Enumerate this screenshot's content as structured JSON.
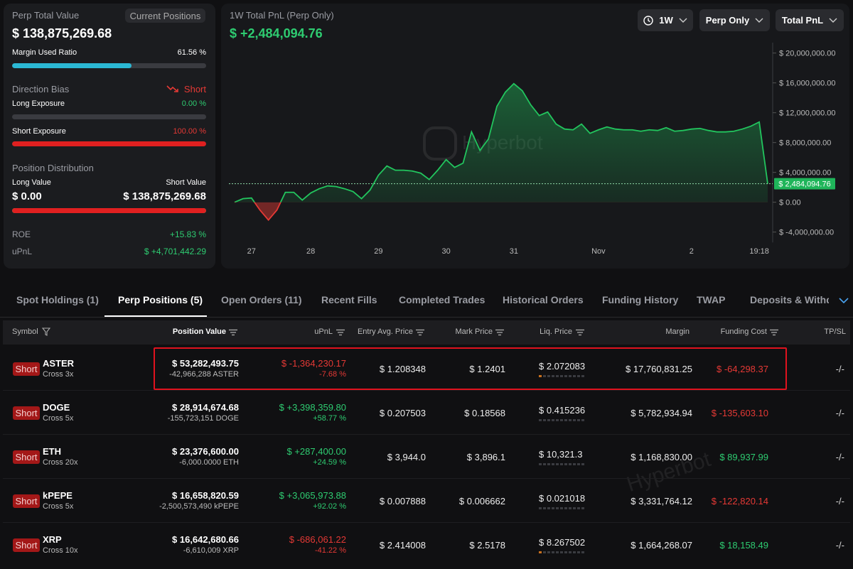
{
  "left_panel": {
    "title": "Perp Total Value",
    "button": "Current Positions",
    "total_value": "$ 138,875,269.68",
    "margin_label": "Margin Used Ratio",
    "margin_ratio": "61.56 %",
    "bias_label": "Direction Bias",
    "bias": "Short",
    "long_exposure_label": "Long Exposure",
    "long_exposure": "0.00 %",
    "short_exposure_label": "Short Exposure",
    "short_exposure": "100.00 %",
    "distribution_label": "Position Distribution",
    "long_value_label": "Long Value",
    "long_value": "$ 0.00",
    "short_value_label": "Short Value",
    "short_value": "$ 138,875,269.68",
    "roe_label": "ROE",
    "roe": "+15.83 %",
    "upnl_label": "uPnL",
    "upnl": "$ +4,701,442.29"
  },
  "chart_data": {
    "type": "area",
    "title": "1W Total PnL (Perp Only)",
    "headline": "$ +2,484,094.76",
    "controls": [
      "1W",
      "Perp Only",
      "Total PnL"
    ],
    "watermark": "Hyperbot",
    "color": "#22c55e",
    "negative_color": "#e53935",
    "grid": false,
    "categories": [
      null,
      null,
      "27",
      null,
      null,
      null,
      null,
      null,
      null,
      "28",
      null,
      null,
      null,
      null,
      null,
      null,
      null,
      "29",
      null,
      null,
      null,
      null,
      null,
      null,
      null,
      "30",
      null,
      null,
      null,
      null,
      null,
      null,
      null,
      "31",
      null,
      null,
      null,
      null,
      null,
      null,
      null,
      null,
      null,
      "Nov",
      null,
      null,
      null,
      null,
      null,
      null,
      null,
      null,
      null,
      null,
      "2",
      null,
      null,
      null,
      null,
      null,
      null,
      null,
      "19:18",
      null
    ],
    "values": [
      0,
      480000,
      570000,
      -1050000,
      -2380000,
      -1050000,
      1330000,
      1330000,
      290000,
      1240000,
      1810000,
      2190000,
      2100000,
      1810000,
      1430000,
      480000,
      1620000,
      3620000,
      4860000,
      4290000,
      4290000,
      4190000,
      3900000,
      3050000,
      4290000,
      5710000,
      4670000,
      5240000,
      9430000,
      6950000,
      8480000,
      12860000,
      14760000,
      15900000,
      14950000,
      13050000,
      11620000,
      12100000,
      10480000,
      9810000,
      9710000,
      10480000,
      9240000,
      9710000,
      10100000,
      9810000,
      9710000,
      9710000,
      9520000,
      9710000,
      9620000,
      10000000,
      9520000,
      9620000,
      9810000,
      9900000,
      9620000,
      9430000,
      9430000,
      9520000,
      9810000,
      10190000,
      10760000,
      2484094.76
    ],
    "last_value_label": "$ 2,484,094.76",
    "ylim": [
      -5400000,
      21400000
    ],
    "yticks": [
      {
        "value": 20000000,
        "label": "$ 20,000,000.00"
      },
      {
        "value": 16000000,
        "label": "$ 16,000,000.00"
      },
      {
        "value": 12000000,
        "label": "$ 12,000,000.00"
      },
      {
        "value": 8000000,
        "label": "$ 8,000,000.00"
      },
      {
        "value": 4000000,
        "label": "$ 4,000,000.00"
      },
      {
        "value": 0,
        "label": "$ 0.00"
      },
      {
        "value": -4000000,
        "label": "$ -4,000,000.00"
      }
    ]
  },
  "tabs": [
    "Spot Holdings (1)",
    "Perp Positions (5)",
    "Open Orders (11)",
    "Recent Fills",
    "Completed Trades",
    "Historical Orders",
    "Funding History",
    "TWAP",
    "Deposits & Withdra"
  ],
  "table": {
    "headers": [
      "Symbol",
      "Position Value",
      "uPnL",
      "Entry Avg. Price",
      "Mark Price",
      "Liq. Price",
      "Margin",
      "Funding Cost",
      "TP/SL"
    ],
    "rows": [
      {
        "side": "Short",
        "symbol": "ASTER",
        "margin_mode": "Cross 3x",
        "position_value": "$ 53,282,493.75",
        "size": "-42,966,288 ASTER",
        "upnl": "$ -1,364,230.17",
        "upnl_pct": "-7.68 %",
        "entry_price": "$ 1.208348",
        "mark_price": "$ 1.2401",
        "liq_price": "$ 2.072083",
        "margin": "$ 17,760,831.25",
        "funding_cost": "$ -64,298.37",
        "tp_sl": "-/-"
      },
      {
        "side": "Short",
        "symbol": "DOGE",
        "margin_mode": "Cross 5x",
        "position_value": "$ 28,914,674.68",
        "size": "-155,723,151 DOGE",
        "upnl": "$ +3,398,359.80",
        "upnl_pct": "+58.77 %",
        "entry_price": "$ 0.207503",
        "mark_price": "$ 0.18568",
        "liq_price": "$ 0.415236",
        "margin": "$ 5,782,934.94",
        "funding_cost": "$ -135,603.10",
        "tp_sl": "-/-"
      },
      {
        "side": "Short",
        "symbol": "ETH",
        "margin_mode": "Cross 20x",
        "position_value": "$ 23,376,600.00",
        "size": "-6,000.0000 ETH",
        "upnl": "$ +287,400.00",
        "upnl_pct": "+24.59 %",
        "entry_price": "$ 3,944.0",
        "mark_price": "$ 3,896.1",
        "liq_price": "$ 10,321.3",
        "margin": "$ 1,168,830.00",
        "funding_cost": "$ 89,937.99",
        "tp_sl": "-/-"
      },
      {
        "side": "Short",
        "symbol": "kPEPE",
        "margin_mode": "Cross 5x",
        "position_value": "$ 16,658,820.59",
        "size": "-2,500,573,490 kPEPE",
        "upnl": "$ +3,065,973.88",
        "upnl_pct": "+92.02 %",
        "entry_price": "$ 0.007888",
        "mark_price": "$ 0.006662",
        "liq_price": "$ 0.021018",
        "margin": "$ 3,331,764.12",
        "funding_cost": "$ -122,820.14",
        "tp_sl": "-/-"
      },
      {
        "side": "Short",
        "symbol": "XRP",
        "margin_mode": "Cross 10x",
        "position_value": "$ 16,642,680.66",
        "size": "-6,610,009 XRP",
        "upnl": "$ -686,061.22",
        "upnl_pct": "-41.22 %",
        "entry_price": "$ 2.414008",
        "mark_price": "$ 2.5178",
        "liq_price": "$ 8.267502",
        "margin": "$ 1,664,268.07",
        "funding_cost": "$ 18,158.49",
        "tp_sl": "-/-"
      }
    ]
  }
}
